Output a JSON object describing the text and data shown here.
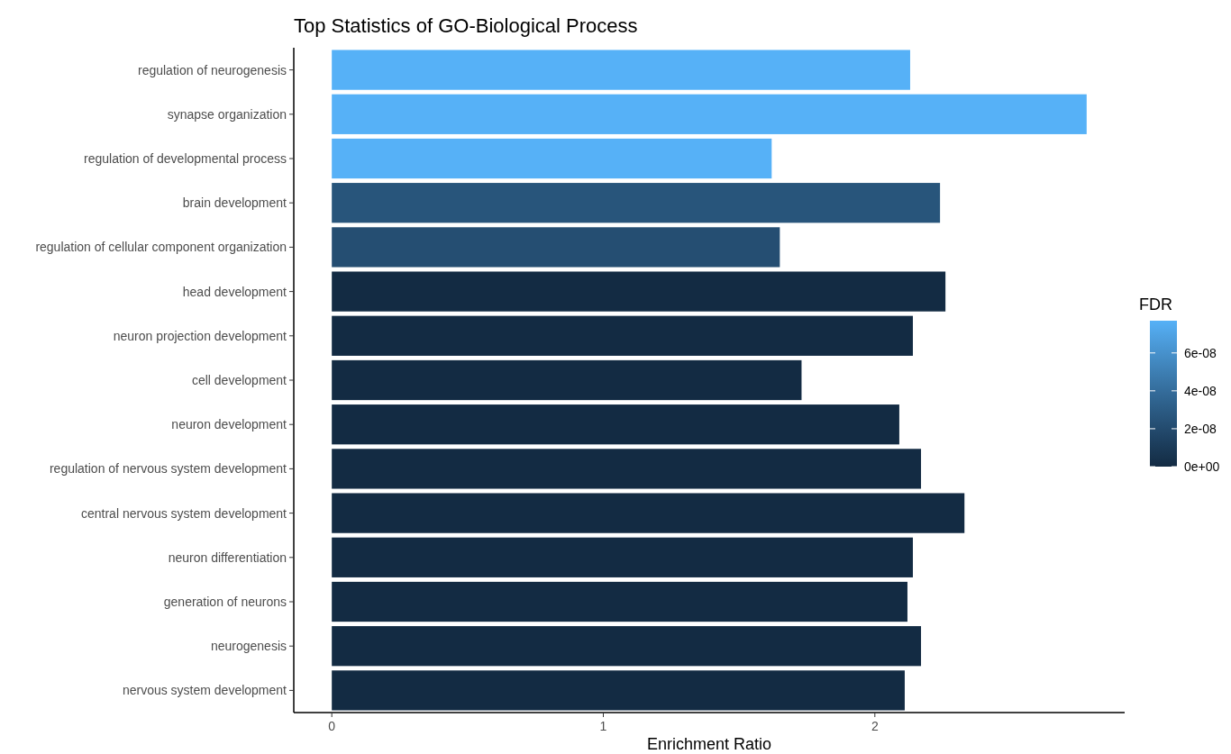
{
  "chart_data": {
    "type": "bar",
    "orientation": "horizontal",
    "title": "Top Statistics of GO-Biological Process",
    "xlabel": "Enrichment Ratio",
    "clabel": "FDR",
    "categories": [
      "regulation of neurogenesis",
      "synapse organization",
      "regulation of developmental process",
      "brain development",
      "regulation of cellular component organization",
      "head development",
      "neuron projection development",
      "cell development",
      "neuron development",
      "regulation of nervous system development",
      "central nervous system development",
      "neuron differentiation",
      "generation of neurons",
      "neurogenesis",
      "nervous system development"
    ],
    "values": [
      2.13,
      2.78,
      1.62,
      2.24,
      1.65,
      2.26,
      2.14,
      1.73,
      2.09,
      2.17,
      2.33,
      2.14,
      2.12,
      2.17,
      2.11
    ],
    "cvalues": [
      7.7e-08,
      7.7e-08,
      7.7e-08,
      2.6e-08,
      2.2e-08,
      0,
      0,
      0,
      0,
      0,
      0,
      0,
      0,
      0,
      0
    ],
    "clim": [
      0,
      7.7e-08
    ],
    "cticks": [
      {
        "value": 0,
        "label": "0e+00"
      },
      {
        "value": 2e-08,
        "label": "2e-08"
      },
      {
        "value": 4e-08,
        "label": "4e-08"
      },
      {
        "value": 6e-08,
        "label": "6e-08"
      }
    ],
    "xlim": [
      -0.14,
      2.92
    ],
    "xticks": [
      0,
      1,
      2
    ],
    "grid": false
  }
}
